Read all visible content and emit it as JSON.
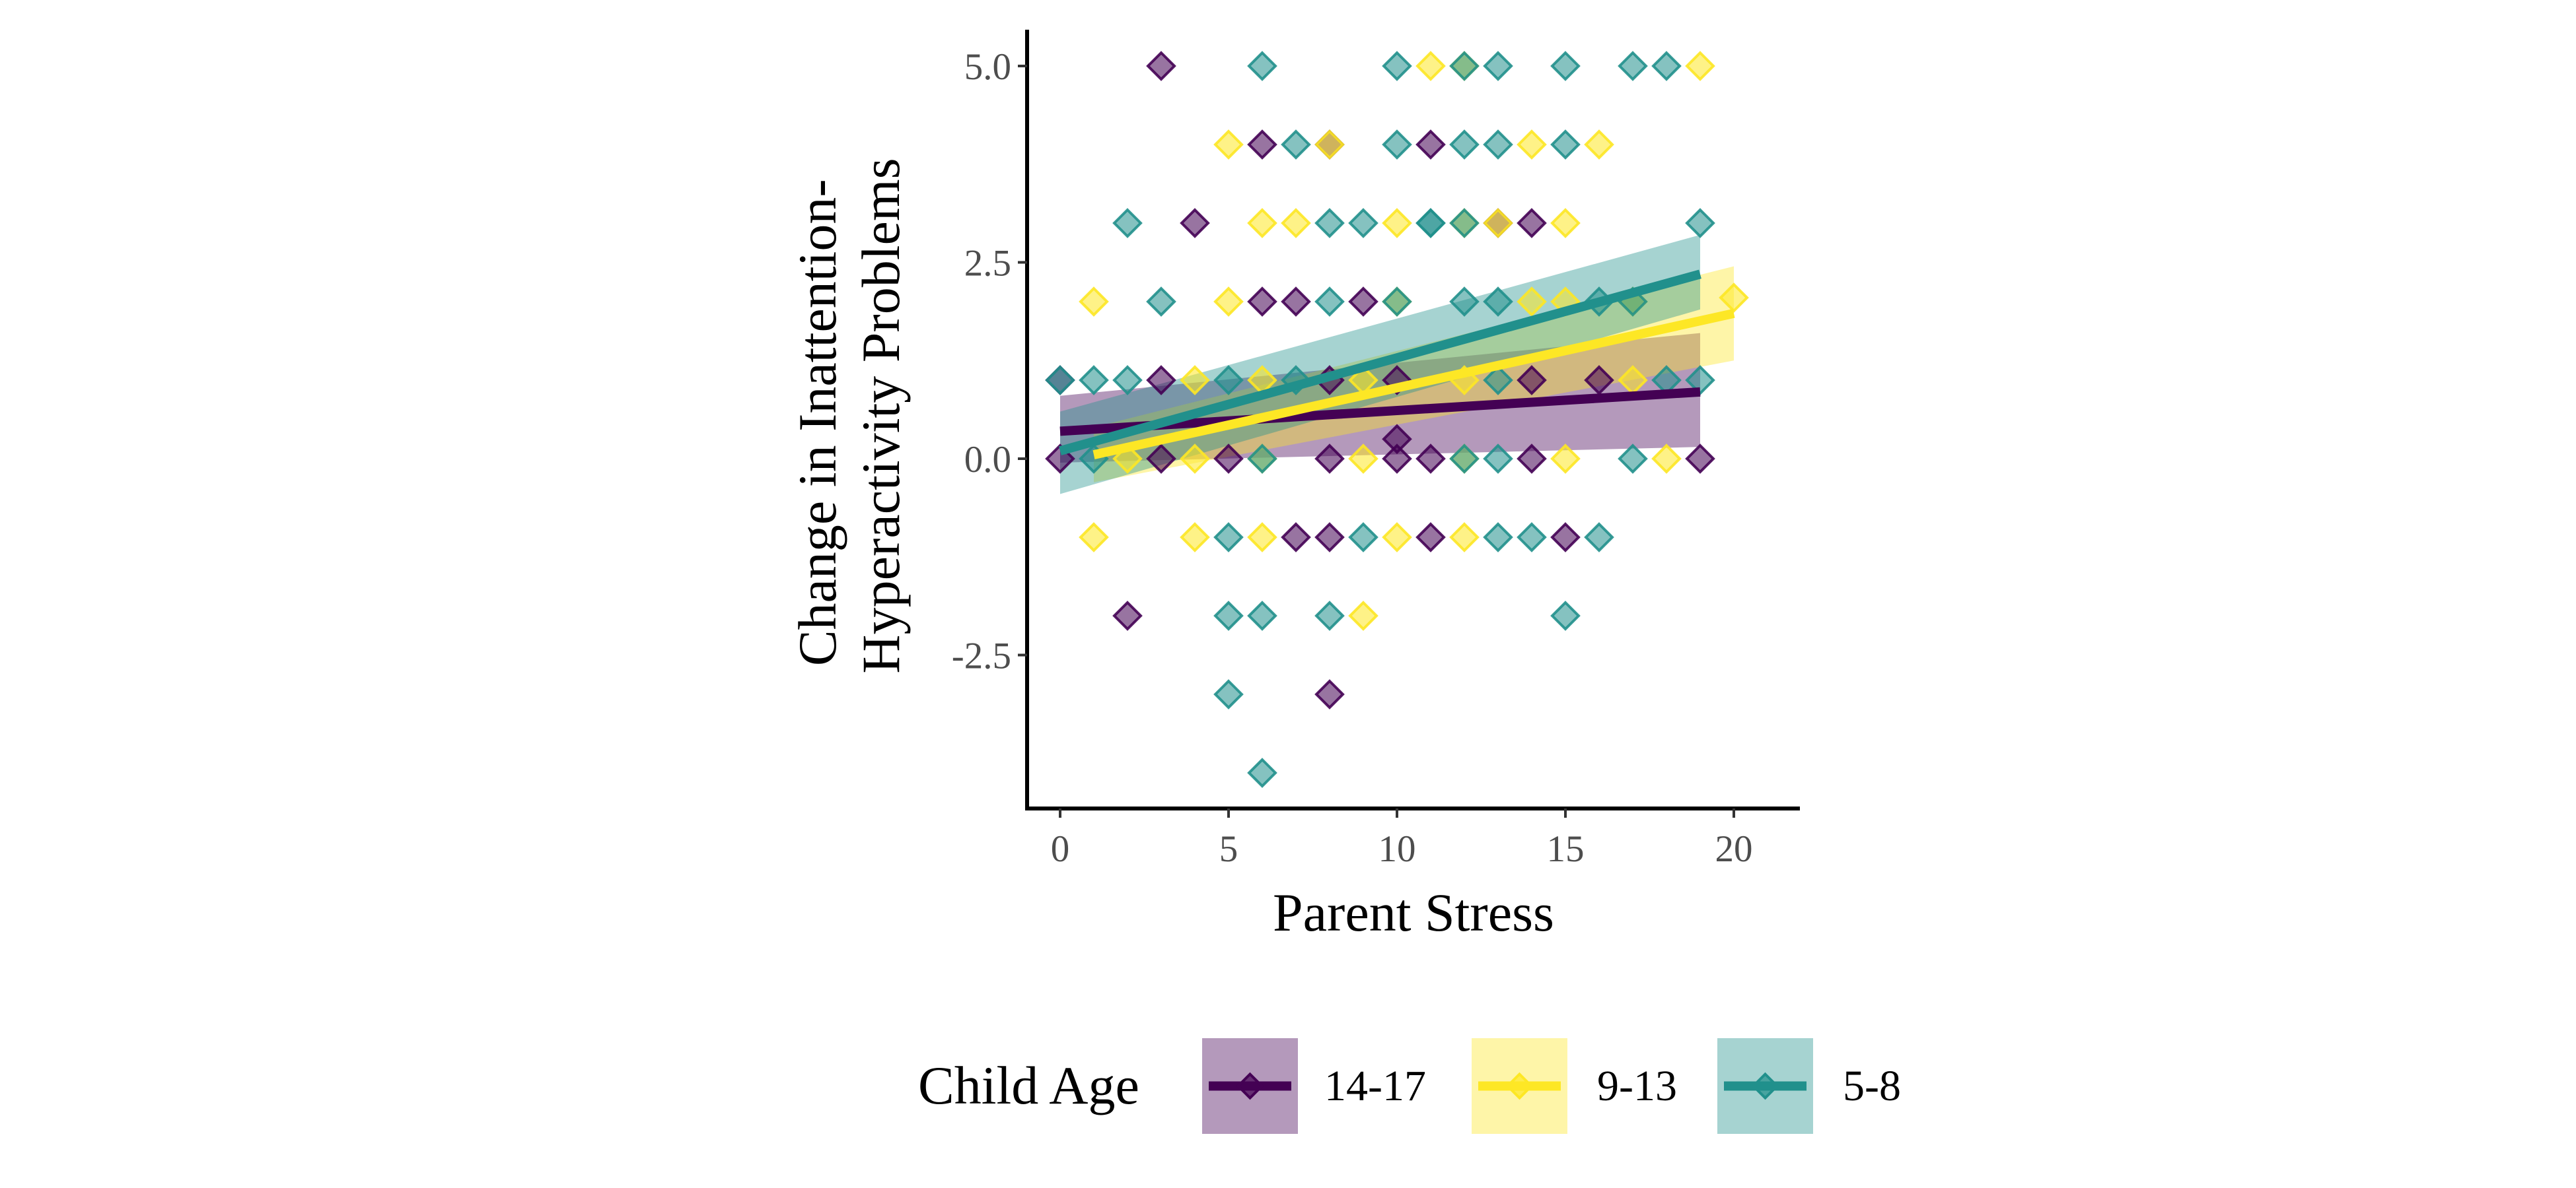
{
  "chart_data": {
    "type": "scatter",
    "xlabel": "Parent Stress",
    "ylabel_lines": [
      "Change in Inattention-",
      "Hyperactivity Problems"
    ],
    "xlim": [
      -1,
      22
    ],
    "ylim": [
      -4.5,
      5.4
    ],
    "x_ticks": [
      0,
      5,
      10,
      15,
      20
    ],
    "x_tick_labels": [
      "0",
      "5",
      "10",
      "15",
      "20"
    ],
    "y_ticks": [
      -2.5,
      0,
      2.5,
      5
    ],
    "y_tick_labels": [
      "-2.5",
      "0.0",
      "2.5",
      "5.0"
    ],
    "grid": false,
    "legend": {
      "title": "Child Age",
      "position": "bottom",
      "labels": [
        "14-17",
        "9-13",
        "5-8"
      ]
    },
    "series": [
      {
        "name": "14-17",
        "color": "#440154",
        "fit": {
          "x": [
            0,
            19
          ],
          "y": [
            0.35,
            0.85
          ],
          "ci_low": [
            -0.05,
            0.15
          ],
          "ci_high": [
            0.8,
            1.6
          ]
        },
        "points": [
          [
            3,
            5
          ],
          [
            6,
            4
          ],
          [
            11,
            4
          ],
          [
            8,
            4
          ],
          [
            13,
            3
          ],
          [
            14,
            3
          ],
          [
            6,
            2
          ],
          [
            7,
            2
          ],
          [
            9,
            2
          ],
          [
            3,
            1
          ],
          [
            8,
            1
          ],
          [
            10,
            1
          ],
          [
            14,
            1
          ],
          [
            16,
            1
          ],
          [
            0,
            0
          ],
          [
            3,
            0
          ],
          [
            5,
            0
          ],
          [
            8,
            0
          ],
          [
            10,
            0
          ],
          [
            11,
            0
          ],
          [
            14,
            0
          ],
          [
            19,
            0
          ],
          [
            10,
            0.25
          ],
          [
            7,
            -1
          ],
          [
            8,
            -1
          ],
          [
            11,
            -1
          ],
          [
            15,
            -1
          ],
          [
            2,
            -2
          ],
          [
            8,
            -3
          ],
          [
            0,
            1
          ],
          [
            4,
            3
          ]
        ]
      },
      {
        "name": "9-13",
        "color": "#FDE725",
        "fit": {
          "x": [
            1,
            20
          ],
          "y": [
            0.05,
            1.85
          ],
          "ci_low": [
            -0.3,
            1.25
          ],
          "ci_high": [
            0.4,
            2.45
          ]
        },
        "points": [
          [
            11,
            5
          ],
          [
            12,
            5
          ],
          [
            19,
            5
          ],
          [
            5,
            4
          ],
          [
            8,
            4
          ],
          [
            14,
            4
          ],
          [
            16,
            4
          ],
          [
            6,
            3
          ],
          [
            7,
            3
          ],
          [
            10,
            3
          ],
          [
            12,
            3
          ],
          [
            15,
            3
          ],
          [
            1,
            2
          ],
          [
            5,
            2
          ],
          [
            10,
            2
          ],
          [
            14,
            2
          ],
          [
            15,
            2
          ],
          [
            20,
            2.05
          ],
          [
            4,
            1
          ],
          [
            6,
            1
          ],
          [
            9,
            1
          ],
          [
            12,
            1
          ],
          [
            17,
            1
          ],
          [
            4,
            0
          ],
          [
            6,
            0
          ],
          [
            9,
            0
          ],
          [
            12,
            0
          ],
          [
            15,
            0
          ],
          [
            18,
            0
          ],
          [
            1,
            -1
          ],
          [
            4,
            -1
          ],
          [
            6,
            -1
          ],
          [
            10,
            -1
          ],
          [
            12,
            -1
          ],
          [
            9,
            -2
          ],
          [
            2,
            0
          ],
          [
            13,
            3
          ],
          [
            17,
            2
          ]
        ]
      },
      {
        "name": "5-8",
        "color": "#21908C",
        "fit": {
          "x": [
            0,
            19
          ],
          "y": [
            0.1,
            2.35
          ],
          "ci_low": [
            -0.45,
            1.9
          ],
          "ci_high": [
            0.6,
            2.85
          ]
        },
        "points": [
          [
            6,
            5
          ],
          [
            10,
            5
          ],
          [
            12,
            5
          ],
          [
            13,
            5
          ],
          [
            15,
            5
          ],
          [
            17,
            5
          ],
          [
            18,
            5
          ],
          [
            7,
            4
          ],
          [
            10,
            4
          ],
          [
            12,
            4
          ],
          [
            13,
            4
          ],
          [
            15,
            4
          ],
          [
            2,
            3
          ],
          [
            8,
            3
          ],
          [
            9,
            3
          ],
          [
            11,
            3
          ],
          [
            12,
            3
          ],
          [
            19,
            3
          ],
          [
            3,
            2
          ],
          [
            8,
            2
          ],
          [
            10,
            2
          ],
          [
            12,
            2
          ],
          [
            13,
            2
          ],
          [
            16,
            2
          ],
          [
            17,
            2
          ],
          [
            0,
            1
          ],
          [
            1,
            1
          ],
          [
            2,
            1
          ],
          [
            5,
            1
          ],
          [
            7,
            1
          ],
          [
            13,
            1
          ],
          [
            18,
            1
          ],
          [
            19,
            1
          ],
          [
            1,
            0
          ],
          [
            6,
            0
          ],
          [
            13,
            0
          ],
          [
            17,
            0
          ],
          [
            5,
            -1
          ],
          [
            9,
            -1
          ],
          [
            13,
            -1
          ],
          [
            14,
            -1
          ],
          [
            16,
            -1
          ],
          [
            5,
            -2
          ],
          [
            6,
            -2
          ],
          [
            8,
            -2
          ],
          [
            15,
            -2
          ],
          [
            5,
            -3
          ],
          [
            6,
            -4
          ],
          [
            11,
            3
          ],
          [
            12,
            0
          ]
        ]
      }
    ]
  }
}
